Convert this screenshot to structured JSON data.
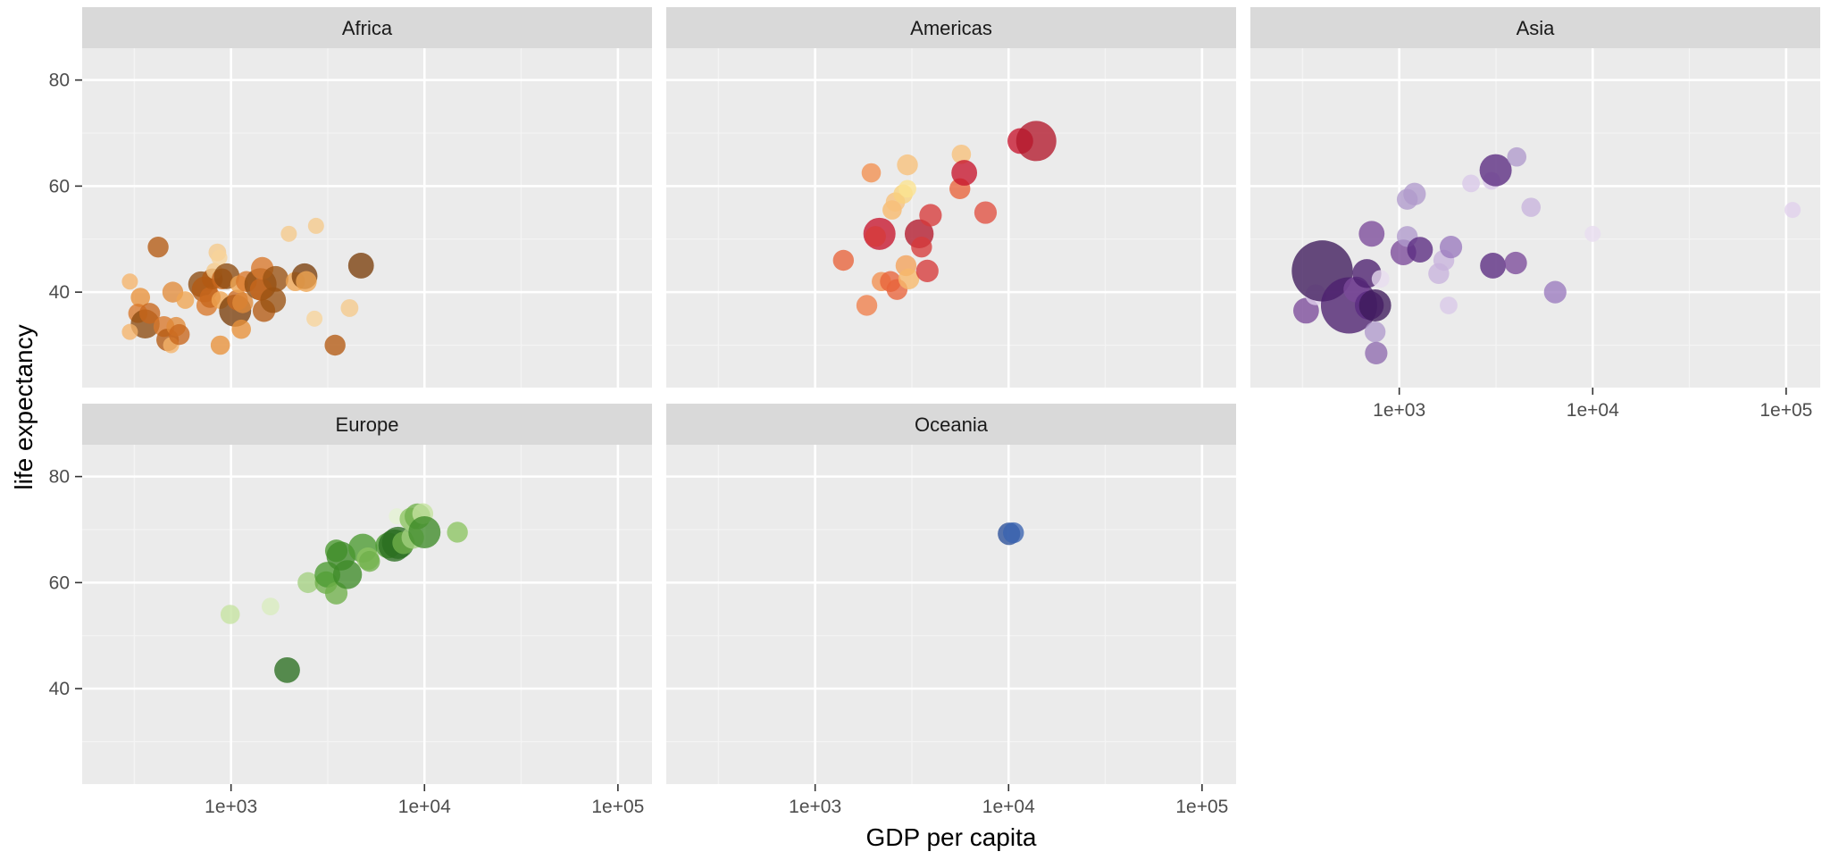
{
  "chart_data": {
    "type": "scatter",
    "xlabel": "GDP per capita",
    "ylabel": "life expectancy",
    "x_scale": "log10",
    "xlim": [
      170,
      150000
    ],
    "ylim": [
      22,
      86
    ],
    "x_ticks": [
      {
        "value": 1000,
        "label": "1e+03"
      },
      {
        "value": 10000,
        "label": "1e+04"
      },
      {
        "value": 100000,
        "label": "1e+05"
      }
    ],
    "y_ticks": [
      {
        "value": 40,
        "label": "40"
      },
      {
        "value": 60,
        "label": "60"
      },
      {
        "value": 80,
        "label": "80"
      }
    ],
    "grid": true,
    "legend": "none",
    "facets": [
      {
        "name": "Africa",
        "points": [
          {
            "x": 300,
            "y": 42,
            "size": 1.0,
            "color": "#f5b46a"
          },
          {
            "x": 340,
            "y": 39,
            "size": 1.2,
            "color": "#e8913a"
          },
          {
            "x": 330,
            "y": 36,
            "size": 1.2,
            "color": "#d9772a"
          },
          {
            "x": 360,
            "y": 34,
            "size": 1.8,
            "color": "#8c4a10"
          },
          {
            "x": 380,
            "y": 36,
            "size": 1.3,
            "color": "#c8661c"
          },
          {
            "x": 300,
            "y": 32.5,
            "size": 1.0,
            "color": "#f5b46a"
          },
          {
            "x": 420,
            "y": 48.5,
            "size": 1.3,
            "color": "#b35a12"
          },
          {
            "x": 450,
            "y": 33.5,
            "size": 1.3,
            "color": "#d9772a"
          },
          {
            "x": 470,
            "y": 31,
            "size": 1.4,
            "color": "#b35a12"
          },
          {
            "x": 490,
            "y": 30,
            "size": 1.0,
            "color": "#f5b46a"
          },
          {
            "x": 520,
            "y": 33.5,
            "size": 1.2,
            "color": "#e08a3a"
          },
          {
            "x": 540,
            "y": 32,
            "size": 1.3,
            "color": "#c8661c"
          },
          {
            "x": 500,
            "y": 40,
            "size": 1.3,
            "color": "#e08a3a"
          },
          {
            "x": 580,
            "y": 38.5,
            "size": 1.1,
            "color": "#f0a552"
          },
          {
            "x": 700,
            "y": 41.5,
            "size": 1.6,
            "color": "#8c4a10"
          },
          {
            "x": 730,
            "y": 40.5,
            "size": 1.6,
            "color": "#b35a12"
          },
          {
            "x": 750,
            "y": 37.5,
            "size": 1.3,
            "color": "#d9772a"
          },
          {
            "x": 780,
            "y": 39,
            "size": 1.3,
            "color": "#c8661c"
          },
          {
            "x": 800,
            "y": 42.5,
            "size": 1.3,
            "color": "#b35a12"
          },
          {
            "x": 820,
            "y": 44,
            "size": 1.0,
            "color": "#f5c98a"
          },
          {
            "x": 850,
            "y": 47.5,
            "size": 1.1,
            "color": "#f5c98a"
          },
          {
            "x": 870,
            "y": 46.5,
            "size": 1.0,
            "color": "#f7d39a"
          },
          {
            "x": 880,
            "y": 38.5,
            "size": 1.1,
            "color": "#f0a552"
          },
          {
            "x": 900,
            "y": 42.5,
            "size": 1.3,
            "color": "#c8661c"
          },
          {
            "x": 950,
            "y": 43,
            "size": 1.6,
            "color": "#8c4a10"
          },
          {
            "x": 880,
            "y": 30,
            "size": 1.2,
            "color": "#e8913a"
          },
          {
            "x": 1050,
            "y": 36.5,
            "size": 2.0,
            "color": "#7a3d0a"
          },
          {
            "x": 1080,
            "y": 38.5,
            "size": 1.3,
            "color": "#c8661c"
          },
          {
            "x": 1100,
            "y": 41.5,
            "size": 1.1,
            "color": "#f0a552"
          },
          {
            "x": 1150,
            "y": 38,
            "size": 1.3,
            "color": "#e08a3a"
          },
          {
            "x": 1130,
            "y": 33,
            "size": 1.2,
            "color": "#e8913a"
          },
          {
            "x": 1200,
            "y": 42,
            "size": 1.3,
            "color": "#d9772a"
          },
          {
            "x": 1420,
            "y": 41.5,
            "size": 2.0,
            "color": "#8c4a10"
          },
          {
            "x": 1430,
            "y": 40.5,
            "size": 1.4,
            "color": "#c8661c"
          },
          {
            "x": 1450,
            "y": 44.5,
            "size": 1.4,
            "color": "#d9772a"
          },
          {
            "x": 1480,
            "y": 36.5,
            "size": 1.4,
            "color": "#b35a12"
          },
          {
            "x": 1650,
            "y": 38.5,
            "size": 1.6,
            "color": "#9a5212"
          },
          {
            "x": 1700,
            "y": 42.5,
            "size": 1.6,
            "color": "#9a5212"
          },
          {
            "x": 1990,
            "y": 51,
            "size": 1.0,
            "color": "#f5c98a"
          },
          {
            "x": 2150,
            "y": 42,
            "size": 1.2,
            "color": "#f0a552"
          },
          {
            "x": 2400,
            "y": 43,
            "size": 1.6,
            "color": "#7a3d0a"
          },
          {
            "x": 2450,
            "y": 42,
            "size": 1.3,
            "color": "#f0a552"
          },
          {
            "x": 2750,
            "y": 52.5,
            "size": 1.0,
            "color": "#f5c98a"
          },
          {
            "x": 2700,
            "y": 35,
            "size": 1.0,
            "color": "#f7d39a"
          },
          {
            "x": 3450,
            "y": 30,
            "size": 1.3,
            "color": "#b35a12"
          },
          {
            "x": 4100,
            "y": 37,
            "size": 1.1,
            "color": "#f5c98a"
          },
          {
            "x": 4700,
            "y": 45,
            "size": 1.6,
            "color": "#7a3d0a"
          }
        ]
      },
      {
        "name": "Americas",
        "points": [
          {
            "x": 1400,
            "y": 46,
            "size": 1.3,
            "color": "#e8633a"
          },
          {
            "x": 1850,
            "y": 37.5,
            "size": 1.3,
            "color": "#ef7f4a"
          },
          {
            "x": 1950,
            "y": 62.5,
            "size": 1.2,
            "color": "#f28f50"
          },
          {
            "x": 2150,
            "y": 51,
            "size": 2.0,
            "color": "#c7152d"
          },
          {
            "x": 2050,
            "y": 50.5,
            "size": 1.3,
            "color": "#d63a3a"
          },
          {
            "x": 2200,
            "y": 42,
            "size": 1.2,
            "color": "#f28f50"
          },
          {
            "x": 2450,
            "y": 42,
            "size": 1.3,
            "color": "#e8633a"
          },
          {
            "x": 2500,
            "y": 55.5,
            "size": 1.2,
            "color": "#f7b86a"
          },
          {
            "x": 2600,
            "y": 57,
            "size": 1.2,
            "color": "#f7c07a"
          },
          {
            "x": 2650,
            "y": 40.5,
            "size": 1.3,
            "color": "#e8633a"
          },
          {
            "x": 2850,
            "y": 58.5,
            "size": 1.2,
            "color": "#f9d27e"
          },
          {
            "x": 3000,
            "y": 59.5,
            "size": 1.1,
            "color": "#fbe38f"
          },
          {
            "x": 3000,
            "y": 64,
            "size": 1.3,
            "color": "#f7c07a"
          },
          {
            "x": 2950,
            "y": 45,
            "size": 1.3,
            "color": "#f4a15a"
          },
          {
            "x": 3050,
            "y": 42.5,
            "size": 1.3,
            "color": "#f7b86a"
          },
          {
            "x": 3450,
            "y": 51,
            "size": 1.8,
            "color": "#b2182b"
          },
          {
            "x": 3550,
            "y": 48.5,
            "size": 1.3,
            "color": "#d63a3a"
          },
          {
            "x": 3800,
            "y": 44,
            "size": 1.4,
            "color": "#d63a3a"
          },
          {
            "x": 3950,
            "y": 54.5,
            "size": 1.4,
            "color": "#d63a3a"
          },
          {
            "x": 5700,
            "y": 66,
            "size": 1.2,
            "color": "#f7c07a"
          },
          {
            "x": 5600,
            "y": 59.5,
            "size": 1.3,
            "color": "#e8633a"
          },
          {
            "x": 5900,
            "y": 62.5,
            "size": 1.6,
            "color": "#c7152d"
          },
          {
            "x": 7600,
            "y": 55,
            "size": 1.4,
            "color": "#e05040"
          },
          {
            "x": 11500,
            "y": 68.5,
            "size": 1.6,
            "color": "#c7152d"
          },
          {
            "x": 13900,
            "y": 68.5,
            "size": 2.5,
            "color": "#b2182b"
          }
        ]
      },
      {
        "name": "Asia",
        "points": [
          {
            "x": 330,
            "y": 36.5,
            "size": 1.6,
            "color": "#7b4a9a"
          },
          {
            "x": 370,
            "y": 39.5,
            "size": 1.3,
            "color": "#e0d0ec"
          },
          {
            "x": 400,
            "y": 44,
            "size": 3.8,
            "color": "#3d1a5b"
          },
          {
            "x": 550,
            "y": 37.5,
            "size": 3.5,
            "color": "#4b1f6e"
          },
          {
            "x": 600,
            "y": 40.5,
            "size": 1.6,
            "color": "#7b4a9a"
          },
          {
            "x": 680,
            "y": 43.5,
            "size": 1.8,
            "color": "#4b1f6e"
          },
          {
            "x": 700,
            "y": 37.5,
            "size": 1.8,
            "color": "#5a2a80"
          },
          {
            "x": 720,
            "y": 51,
            "size": 1.6,
            "color": "#7b4a9a"
          },
          {
            "x": 750,
            "y": 37.5,
            "size": 2.0,
            "color": "#3d1a5b"
          },
          {
            "x": 750,
            "y": 32.5,
            "size": 1.3,
            "color": "#b09acc"
          },
          {
            "x": 760,
            "y": 28.5,
            "size": 1.4,
            "color": "#8e6aae"
          },
          {
            "x": 800,
            "y": 42.5,
            "size": 1.1,
            "color": "#e8dcf0"
          },
          {
            "x": 1050,
            "y": 47.5,
            "size": 1.6,
            "color": "#7b4a9a"
          },
          {
            "x": 1100,
            "y": 50.5,
            "size": 1.3,
            "color": "#b09acc"
          },
          {
            "x": 1100,
            "y": 57.5,
            "size": 1.3,
            "color": "#b09acc"
          },
          {
            "x": 1200,
            "y": 58.5,
            "size": 1.4,
            "color": "#b09acc"
          },
          {
            "x": 1280,
            "y": 48,
            "size": 1.6,
            "color": "#5a2a80"
          },
          {
            "x": 1600,
            "y": 43.5,
            "size": 1.3,
            "color": "#c8b4dc"
          },
          {
            "x": 1700,
            "y": 46,
            "size": 1.3,
            "color": "#c8b4dc"
          },
          {
            "x": 1850,
            "y": 48.5,
            "size": 1.4,
            "color": "#9a7abe"
          },
          {
            "x": 1800,
            "y": 37.5,
            "size": 1.1,
            "color": "#d8c8e8"
          },
          {
            "x": 2350,
            "y": 60.5,
            "size": 1.1,
            "color": "#d8c8e8"
          },
          {
            "x": 3000,
            "y": 61,
            "size": 1.1,
            "color": "#d8c8e8"
          },
          {
            "x": 3050,
            "y": 45,
            "size": 1.6,
            "color": "#5a2a80"
          },
          {
            "x": 3150,
            "y": 63,
            "size": 2.0,
            "color": "#5a2a80"
          },
          {
            "x": 4000,
            "y": 45.5,
            "size": 1.4,
            "color": "#7b4a9a"
          },
          {
            "x": 4050,
            "y": 65.5,
            "size": 1.2,
            "color": "#b09acc"
          },
          {
            "x": 4800,
            "y": 56,
            "size": 1.2,
            "color": "#c8b4dc"
          },
          {
            "x": 6400,
            "y": 40,
            "size": 1.4,
            "color": "#9a7abe"
          },
          {
            "x": 10000,
            "y": 51,
            "size": 1.0,
            "color": "#e8dcf0"
          },
          {
            "x": 108000,
            "y": 55.5,
            "size": 1.0,
            "color": "#e0d0ec"
          }
        ]
      },
      {
        "name": "Europe",
        "points": [
          {
            "x": 990,
            "y": 54,
            "size": 1.2,
            "color": "#c5e3a0"
          },
          {
            "x": 1600,
            "y": 55.5,
            "size": 1.1,
            "color": "#d8ecbe"
          },
          {
            "x": 1950,
            "y": 43.5,
            "size": 1.6,
            "color": "#2a6e20"
          },
          {
            "x": 2500,
            "y": 60,
            "size": 1.3,
            "color": "#a3d080"
          },
          {
            "x": 3100,
            "y": 60,
            "size": 1.4,
            "color": "#6fb04a"
          },
          {
            "x": 3150,
            "y": 61.5,
            "size": 1.6,
            "color": "#4a9a30"
          },
          {
            "x": 3500,
            "y": 58,
            "size": 1.4,
            "color": "#6fb04a"
          },
          {
            "x": 3500,
            "y": 66,
            "size": 1.4,
            "color": "#4a9a30"
          },
          {
            "x": 3700,
            "y": 65,
            "size": 1.8,
            "color": "#3d8a28"
          },
          {
            "x": 4000,
            "y": 61.5,
            "size": 1.8,
            "color": "#3d8a28"
          },
          {
            "x": 4800,
            "y": 66.5,
            "size": 1.8,
            "color": "#4a9a30"
          },
          {
            "x": 5100,
            "y": 64.5,
            "size": 1.4,
            "color": "#8cc462"
          },
          {
            "x": 5200,
            "y": 64,
            "size": 1.3,
            "color": "#6fb04a"
          },
          {
            "x": 6500,
            "y": 67,
            "size": 1.6,
            "color": "#4a9a30"
          },
          {
            "x": 7000,
            "y": 67,
            "size": 2.0,
            "color": "#2a6e20"
          },
          {
            "x": 7300,
            "y": 67.5,
            "size": 2.0,
            "color": "#2a6e20"
          },
          {
            "x": 7800,
            "y": 67.5,
            "size": 1.4,
            "color": "#6fb04a"
          },
          {
            "x": 7200,
            "y": 72.5,
            "size": 1.0,
            "color": "#e4f2d2"
          },
          {
            "x": 8500,
            "y": 72,
            "size": 1.4,
            "color": "#8cc462"
          },
          {
            "x": 8700,
            "y": 68.5,
            "size": 1.4,
            "color": "#a3d080"
          },
          {
            "x": 9200,
            "y": 72.5,
            "size": 1.6,
            "color": "#6fb04a"
          },
          {
            "x": 9800,
            "y": 73,
            "size": 1.3,
            "color": "#c5e3a0"
          },
          {
            "x": 10000,
            "y": 69.5,
            "size": 2.0,
            "color": "#3d8a28"
          },
          {
            "x": 14800,
            "y": 69.5,
            "size": 1.3,
            "color": "#8cc462"
          }
        ]
      },
      {
        "name": "Oceania",
        "points": [
          {
            "x": 10050,
            "y": 69.2,
            "size": 1.4,
            "color": "#2a4f9a"
          },
          {
            "x": 10600,
            "y": 69.4,
            "size": 1.3,
            "color": "#3a63b0"
          }
        ]
      }
    ]
  }
}
